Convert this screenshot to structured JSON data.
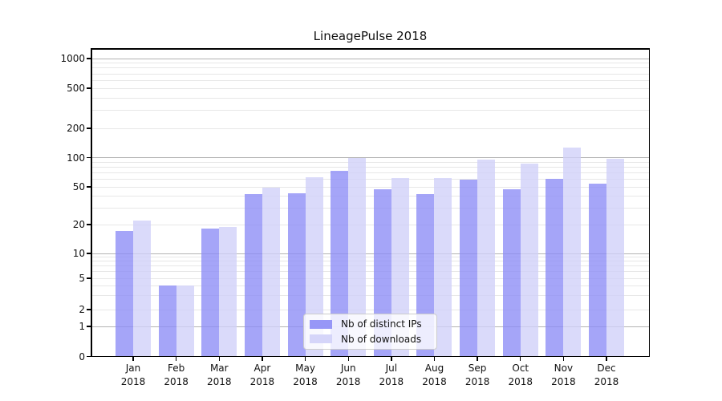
{
  "title": "LineagePulse 2018",
  "colors": {
    "bar_ips": "#8c8cf6",
    "bar_downloads": "#d0d0f8",
    "grid_major": "#b3b3b3",
    "grid_minor": "#e7e7e7",
    "axis": "#000000",
    "legend_border": "#cccccc"
  },
  "chart_data": {
    "type": "bar",
    "title": "LineagePulse 2018",
    "categories": [
      "Jan 2018",
      "Feb 2018",
      "Mar 2018",
      "Apr 2018",
      "May 2018",
      "Jun 2018",
      "Jul 2018",
      "Aug 2018",
      "Sep 2018",
      "Oct 2018",
      "Nov 2018",
      "Dec 2018"
    ],
    "series": [
      {
        "name": "Nb of distinct IPs",
        "key": "ips",
        "values": [
          17,
          4,
          18,
          42,
          43,
          73,
          47,
          42,
          59,
          47,
          61,
          54
        ]
      },
      {
        "name": "Nb of downloads",
        "key": "downloads",
        "values": [
          22,
          4,
          19,
          49,
          63,
          100,
          62,
          62,
          95,
          87,
          128,
          97
        ]
      }
    ],
    "xlabel": "",
    "ylabel": "",
    "yscale": "log (with 0 baseline, symlog-style)",
    "yticks": [
      0,
      1,
      2,
      5,
      10,
      20,
      50,
      100,
      200,
      500,
      1000
    ],
    "ylim": [
      0,
      1400
    ],
    "grid": "horizontal, dark lines at decades (1,10,100,1000), faint minor lines at 2-9 of each decade",
    "legend_position": "lower center inside plot"
  }
}
